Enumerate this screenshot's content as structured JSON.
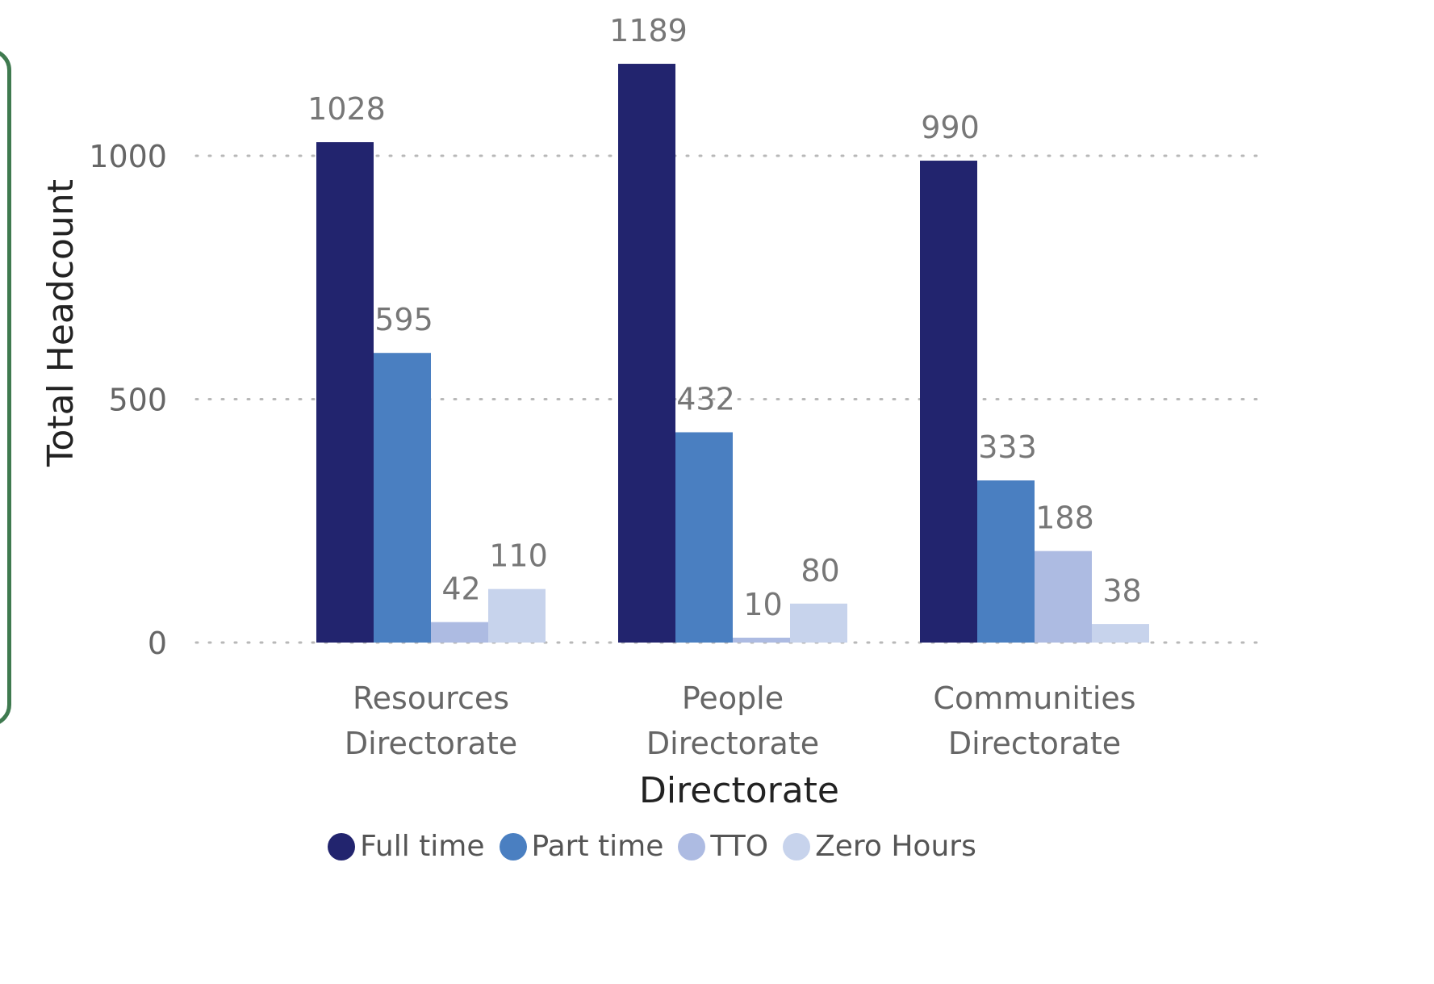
{
  "chart_data": {
    "type": "bar",
    "xlabel": "Directorate",
    "ylabel": "Total Headcount",
    "ylim": [
      0,
      1200
    ],
    "yticks": [
      0,
      500,
      1000
    ],
    "grid": true,
    "legend_position": "bottom",
    "categories": [
      [
        "Resources",
        "Directorate"
      ],
      [
        "People",
        "Directorate"
      ],
      [
        "Communities",
        "Directorate"
      ]
    ],
    "series": [
      {
        "name": "Full time",
        "color": "#22246e",
        "values": [
          1028,
          1189,
          990
        ]
      },
      {
        "name": "Part time",
        "color": "#4a7fc1",
        "values": [
          595,
          432,
          333
        ]
      },
      {
        "name": "TTO",
        "color": "#adbbe2",
        "values": [
          42,
          10,
          188
        ]
      },
      {
        "name": "Zero Hours",
        "color": "#c7d3ec",
        "values": [
          110,
          80,
          38
        ]
      }
    ]
  }
}
